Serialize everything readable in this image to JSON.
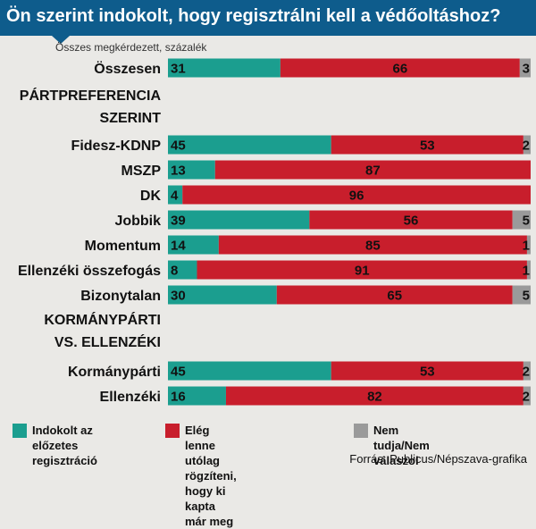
{
  "title": "Ön szerint indokolt, hogy regisztrálni kell a védőoltáshoz?",
  "subtitle": "Összes megkérdezett, százalék",
  "source": "Forrás: Publicus/Népszava-grafika",
  "colors": {
    "yes": "#1b9e8f",
    "no": "#c81e2c",
    "dk": "#9a9a9a",
    "header": "#0e5c8c"
  },
  "legend": [
    {
      "label": "Indokolt az előzetes\nregisztráció",
      "color": "#1b9e8f"
    },
    {
      "label": "Elég lenne utólag rögzíteni,\nhogy ki kapta már meg",
      "color": "#c81e2c"
    },
    {
      "label": "Nem tudja/Nem válaszol",
      "color": "#9a9a9a"
    }
  ],
  "chart_data": {
    "type": "bar",
    "orientation": "horizontal",
    "stacked": true,
    "unit": "%",
    "series": [
      {
        "name": "Indokolt az előzetes regisztráció",
        "color": "#1b9e8f"
      },
      {
        "name": "Elég lenne utólag rögzíteni, hogy ki kapta már meg",
        "color": "#c81e2c"
      },
      {
        "name": "Nem tudja/Nem válaszol",
        "color": "#9a9a9a"
      }
    ],
    "rows": [
      {
        "type": "bar",
        "label": "Összesen",
        "values": [
          31,
          66,
          3
        ]
      },
      {
        "type": "section",
        "label": "PÁRTPREFERENCIA"
      },
      {
        "type": "section",
        "label": "SZERINT"
      },
      {
        "type": "bar",
        "label": "Fidesz-KDNP",
        "values": [
          45,
          53,
          2
        ]
      },
      {
        "type": "bar",
        "label": "MSZP",
        "values": [
          13,
          87,
          0
        ]
      },
      {
        "type": "bar",
        "label": "DK",
        "values": [
          4,
          96,
          0
        ]
      },
      {
        "type": "bar",
        "label": "Jobbik",
        "values": [
          39,
          56,
          5
        ]
      },
      {
        "type": "bar",
        "label": "Momentum",
        "values": [
          14,
          85,
          1
        ]
      },
      {
        "type": "bar",
        "label": "Ellenzéki összefogás",
        "values": [
          8,
          91,
          1
        ]
      },
      {
        "type": "bar",
        "label": "Bizonytalan",
        "values": [
          30,
          65,
          5
        ]
      },
      {
        "type": "section",
        "label": "KORMÁNYPÁRTI"
      },
      {
        "type": "section",
        "label": "VS. ELLENZÉKI"
      },
      {
        "type": "bar",
        "label": "Kormánypárti",
        "values": [
          45,
          53,
          2
        ]
      },
      {
        "type": "bar",
        "label": "Ellenzéki",
        "values": [
          16,
          82,
          2
        ]
      }
    ]
  }
}
